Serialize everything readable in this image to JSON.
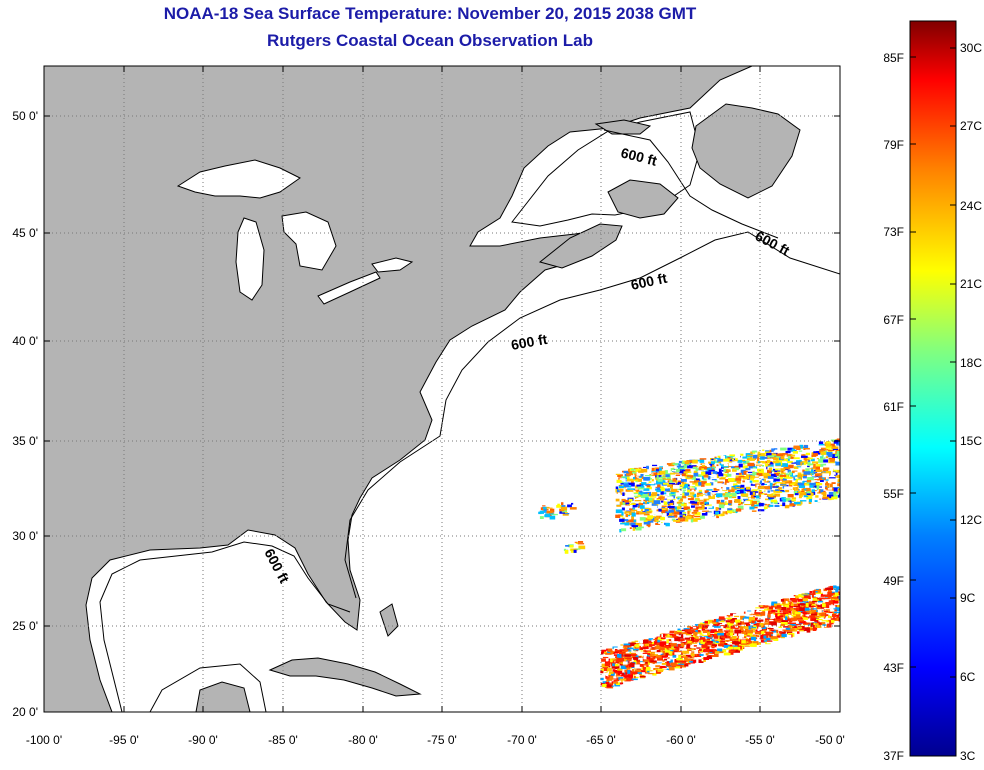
{
  "title": {
    "line1": "NOAA-18 Sea Surface Temperature:  November 20, 2015 2038 GMT",
    "line2": "Rutgers Coastal Ocean Observation Lab"
  },
  "map": {
    "lon_labels": [
      "-100 0'",
      "-95 0'",
      "-90 0'",
      "-85 0'",
      "-80 0'",
      "-75 0'",
      "-70 0'",
      "-65 0'",
      "-60 0'",
      "-55 0'",
      "-50 0'"
    ],
    "lat_labels": [
      "50 0'",
      "45 0'",
      "40 0'",
      "35 0'",
      "30 0'",
      "25 0'",
      "20 0'"
    ],
    "contour_label": "600 ft",
    "land_color": "#b4b4b4",
    "ocean_color": "#ffffff",
    "grid": true
  },
  "colorbar": {
    "f_labels": [
      "85F",
      "79F",
      "73F",
      "67F",
      "61F",
      "55F",
      "49F",
      "43F",
      "37F"
    ],
    "c_labels": [
      "30C",
      "27C",
      "24C",
      "21C",
      "18C",
      "15C",
      "12C",
      "9C",
      "6C",
      "3C"
    ],
    "colors": [
      "#00008f",
      "#0000ff",
      "#0080ff",
      "#00ffff",
      "#80ff80",
      "#ffff00",
      "#ff8000",
      "#ff0000",
      "#800000"
    ]
  }
}
